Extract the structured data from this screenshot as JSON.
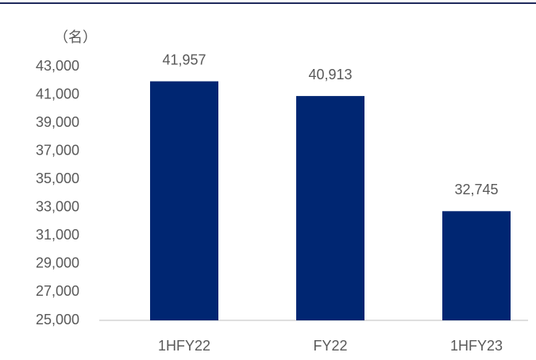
{
  "chart_data": {
    "type": "bar",
    "unit_label": "（名）",
    "categories": [
      "1HFY22",
      "FY22",
      "1HFY23"
    ],
    "values": [
      41957,
      40913,
      32745
    ],
    "value_labels": [
      "41,957",
      "40,913",
      "32,745"
    ],
    "color": "#002672",
    "ylim": [
      25000,
      43000
    ],
    "yticks": [
      {
        "value": 25000,
        "label": "25,000"
      },
      {
        "value": 27000,
        "label": "27,000"
      },
      {
        "value": 29000,
        "label": "29,000"
      },
      {
        "value": 31000,
        "label": "31,000"
      },
      {
        "value": 33000,
        "label": "33,000"
      },
      {
        "value": 35000,
        "label": "35,000"
      },
      {
        "value": 37000,
        "label": "37,000"
      },
      {
        "value": 39000,
        "label": "39,000"
      },
      {
        "value": 41000,
        "label": "41,000"
      },
      {
        "value": 43000,
        "label": "43,000"
      }
    ],
    "grid": false
  }
}
